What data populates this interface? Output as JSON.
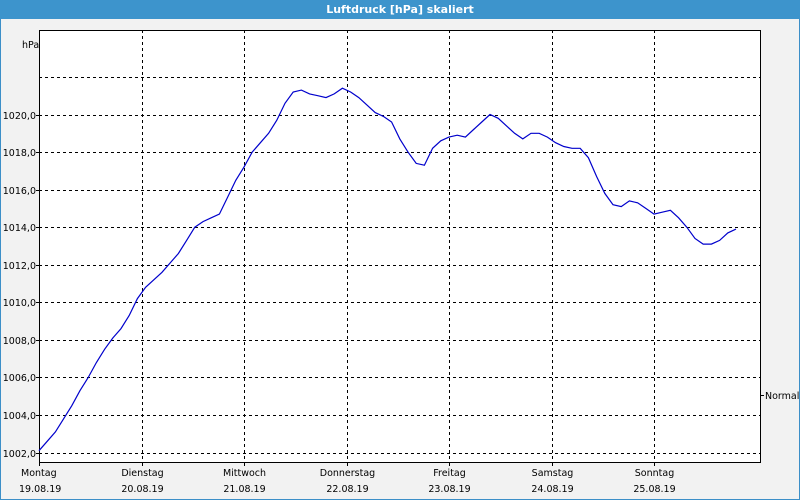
{
  "chart_data": {
    "type": "line",
    "title": "Luftdruck [hPa] skaliert",
    "ylabel": "hPa",
    "ylim": [
      1001.5,
      1024.5
    ],
    "yticks": [
      "1002,0",
      "1004,0",
      "1006,0",
      "1008,0",
      "1010,0",
      "1012,0",
      "1014,0",
      "1016,0",
      "1018,0",
      "1020,0"
    ],
    "ytick_values": [
      1002,
      1004,
      1006,
      1008,
      1010,
      1012,
      1014,
      1016,
      1018,
      1020
    ],
    "xlim": [
      0,
      6.89
    ],
    "xticks": [
      {
        "day": "Montag",
        "date": "19.08.19"
      },
      {
        "day": "Dienstag",
        "date": "20.08.19"
      },
      {
        "day": "Mittwoch",
        "date": "21.08.19"
      },
      {
        "day": "Donnerstag",
        "date": "22.08.19"
      },
      {
        "day": "Freitag",
        "date": "23.08.19"
      },
      {
        "day": "Samstag",
        "date": "24.08.19"
      },
      {
        "day": "Sonntag",
        "date": "25.08.19"
      }
    ],
    "grid": true,
    "normal_label": "Normal",
    "series": [
      {
        "color": "#0000cc",
        "points": [
          [
            0.0,
            1002.1
          ],
          [
            0.08,
            1002.6
          ],
          [
            0.16,
            1003.1
          ],
          [
            0.24,
            1003.8
          ],
          [
            0.32,
            1004.5
          ],
          [
            0.4,
            1005.3
          ],
          [
            0.48,
            1006.0
          ],
          [
            0.56,
            1006.8
          ],
          [
            0.64,
            1007.5
          ],
          [
            0.72,
            1008.1
          ],
          [
            0.8,
            1008.6
          ],
          [
            0.88,
            1009.3
          ],
          [
            0.96,
            1010.2
          ],
          [
            1.04,
            1010.8
          ],
          [
            1.12,
            1011.2
          ],
          [
            1.2,
            1011.6
          ],
          [
            1.28,
            1012.1
          ],
          [
            1.36,
            1012.6
          ],
          [
            1.44,
            1013.3
          ],
          [
            1.52,
            1014.0
          ],
          [
            1.6,
            1014.3
          ],
          [
            1.68,
            1014.5
          ],
          [
            1.76,
            1014.7
          ],
          [
            1.84,
            1015.6
          ],
          [
            1.92,
            1016.5
          ],
          [
            2.0,
            1017.2
          ],
          [
            2.08,
            1018.0
          ],
          [
            2.16,
            1018.5
          ],
          [
            2.24,
            1019.0
          ],
          [
            2.32,
            1019.7
          ],
          [
            2.4,
            1020.6
          ],
          [
            2.48,
            1021.2
          ],
          [
            2.56,
            1021.3
          ],
          [
            2.64,
            1021.1
          ],
          [
            2.72,
            1021.0
          ],
          [
            2.8,
            1020.9
          ],
          [
            2.88,
            1021.1
          ],
          [
            2.96,
            1021.4
          ],
          [
            3.04,
            1021.2
          ],
          [
            3.12,
            1020.9
          ],
          [
            3.2,
            1020.5
          ],
          [
            3.28,
            1020.1
          ],
          [
            3.36,
            1019.9
          ],
          [
            3.44,
            1019.6
          ],
          [
            3.52,
            1018.7
          ],
          [
            3.6,
            1018.0
          ],
          [
            3.68,
            1017.4
          ],
          [
            3.76,
            1017.3
          ],
          [
            3.84,
            1018.2
          ],
          [
            3.92,
            1018.6
          ],
          [
            4.0,
            1018.8
          ],
          [
            4.08,
            1018.9
          ],
          [
            4.16,
            1018.8
          ],
          [
            4.24,
            1019.2
          ],
          [
            4.32,
            1019.6
          ],
          [
            4.4,
            1020.0
          ],
          [
            4.48,
            1019.8
          ],
          [
            4.56,
            1019.4
          ],
          [
            4.64,
            1019.0
          ],
          [
            4.72,
            1018.7
          ],
          [
            4.8,
            1019.0
          ],
          [
            4.88,
            1019.0
          ],
          [
            4.96,
            1018.8
          ],
          [
            5.04,
            1018.5
          ],
          [
            5.12,
            1018.3
          ],
          [
            5.2,
            1018.2
          ],
          [
            5.28,
            1018.2
          ],
          [
            5.36,
            1017.7
          ],
          [
            5.44,
            1016.7
          ],
          [
            5.52,
            1015.8
          ],
          [
            5.6,
            1015.2
          ],
          [
            5.68,
            1015.1
          ],
          [
            5.76,
            1015.4
          ],
          [
            5.84,
            1015.3
          ],
          [
            5.92,
            1015.0
          ],
          [
            6.0,
            1014.7
          ],
          [
            6.08,
            1014.8
          ],
          [
            6.16,
            1014.9
          ],
          [
            6.24,
            1014.5
          ],
          [
            6.32,
            1014.0
          ],
          [
            6.4,
            1013.4
          ],
          [
            6.48,
            1013.1
          ],
          [
            6.56,
            1013.1
          ],
          [
            6.64,
            1013.3
          ],
          [
            6.72,
            1013.7
          ],
          [
            6.8,
            1013.9
          ]
        ]
      }
    ]
  }
}
